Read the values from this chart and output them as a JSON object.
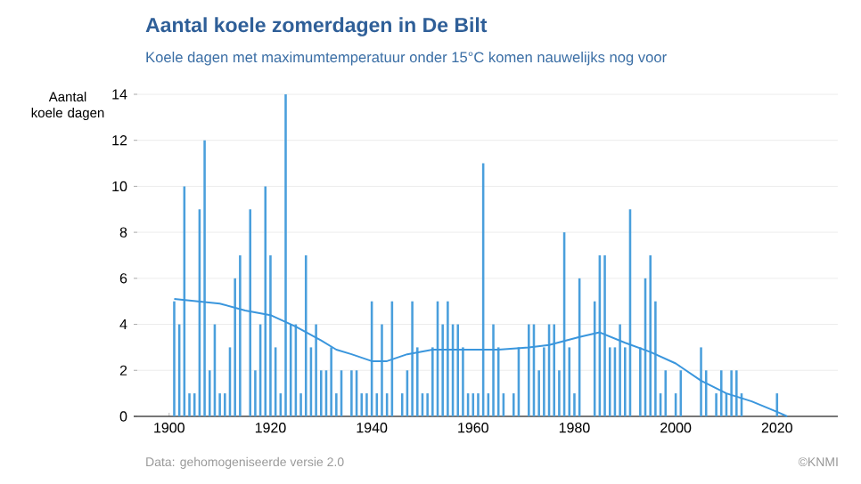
{
  "chart_data": {
    "type": "bar",
    "title": "Aantal koele zomerdagen in De Bilt",
    "subtitle": "Koele dagen met maximumtemperatuur onder 15°C komen nauwelijks nog voor",
    "ylabel": "Aantal koele dagen",
    "annotations": [
      "Data: gehomogeniseerde versie 2.0",
      "©KNMI"
    ],
    "xlim": [
      1893,
      2032
    ],
    "xticks": [
      1900,
      1920,
      1940,
      1960,
      1980,
      2000,
      2020
    ],
    "ylim": [
      0,
      14
    ],
    "yticks": [
      0,
      2,
      4,
      6,
      8,
      10,
      12,
      14
    ],
    "grid": "y",
    "series": [
      {
        "color": "#4a9fdc",
        "x": [
          1901,
          1902,
          1903,
          1904,
          1905,
          1906,
          1907,
          1908,
          1909,
          1910,
          1911,
          1912,
          1913,
          1914,
          1916,
          1917,
          1918,
          1919,
          1920,
          1921,
          1922,
          1923,
          1924,
          1925,
          1926,
          1927,
          1928,
          1929,
          1930,
          1931,
          1932,
          1933,
          1934,
          1936,
          1937,
          1938,
          1939,
          1940,
          1941,
          1942,
          1943,
          1944,
          1946,
          1947,
          1948,
          1949,
          1950,
          1951,
          1952,
          1953,
          1954,
          1955,
          1956,
          1957,
          1958,
          1959,
          1960,
          1961,
          1962,
          1963,
          1964,
          1965,
          1966,
          1968,
          1969,
          1971,
          1972,
          1973,
          1974,
          1975,
          1976,
          1977,
          1978,
          1979,
          1980,
          1981,
          1984,
          1985,
          1986,
          1987,
          1988,
          1989,
          1990,
          1991,
          1993,
          1994,
          1995,
          1996,
          1997,
          1998,
          2000,
          2001,
          2005,
          2006,
          2008,
          2009,
          2010,
          2011,
          2012,
          2013,
          2020
        ],
        "values": [
          5,
          4,
          10,
          1,
          1,
          9,
          12,
          2,
          4,
          1,
          1,
          3,
          6,
          7,
          9,
          2,
          4,
          10,
          7,
          3,
          1,
          14,
          4,
          4,
          1,
          7,
          3,
          4,
          2,
          2,
          3,
          1,
          2,
          2,
          2,
          1,
          1,
          5,
          1,
          4,
          1,
          5,
          1,
          2,
          5,
          3,
          1,
          1,
          3,
          5,
          4,
          5,
          4,
          4,
          3,
          1,
          1,
          1,
          11,
          1,
          4,
          3,
          1,
          1,
          3,
          4,
          4,
          2,
          3,
          4,
          4,
          2,
          8,
          3,
          1,
          6,
          5,
          7,
          7,
          3,
          3,
          4,
          3,
          9,
          3,
          6,
          7,
          5,
          1,
          2,
          1,
          2,
          3,
          2,
          1,
          2,
          1,
          2,
          2,
          1,
          1
        ]
      },
      {
        "type": "line",
        "color": "#3a96dd",
        "x": [
          1901,
          1910,
          1915,
          1920,
          1925,
          1930,
          1933,
          1936,
          1940,
          1943,
          1947,
          1952,
          1959,
          1965,
          1971,
          1975,
          1981,
          1985,
          1990,
          1995,
          2000,
          2005,
          2010,
          2015,
          2020,
          2022
        ],
        "values": [
          5.1,
          4.9,
          4.6,
          4.4,
          3.9,
          3.3,
          2.9,
          2.7,
          2.4,
          2.4,
          2.7,
          2.9,
          2.9,
          2.9,
          3.0,
          3.1,
          3.45,
          3.65,
          3.2,
          2.8,
          2.3,
          1.55,
          1.0,
          0.65,
          0.2,
          0
        ]
      }
    ]
  }
}
